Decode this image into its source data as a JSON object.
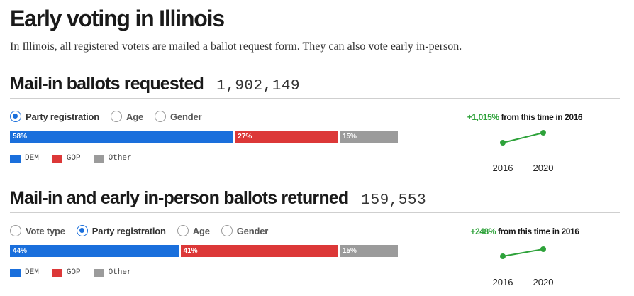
{
  "header": {
    "title": "Early voting in Illinois",
    "subtitle": "In Illinois, all registered voters are mailed a ballot request form. They can also vote early in-person."
  },
  "colors": {
    "dem": "#1a6fdc",
    "gop": "#dc3838",
    "other": "#9b9b9b",
    "trend": "#2ea23a"
  },
  "sections": [
    {
      "title": "Mail-in ballots requested",
      "count": "1,902,149",
      "options": [
        {
          "label": "Party registration",
          "selected": true
        },
        {
          "label": "Age",
          "selected": false
        },
        {
          "label": "Gender",
          "selected": false
        }
      ],
      "bar": [
        {
          "key": "dem",
          "label": "58%",
          "value": 58
        },
        {
          "key": "gop",
          "label": "27%",
          "value": 27
        },
        {
          "key": "other",
          "label": "15%",
          "value": 15
        }
      ],
      "legend": [
        {
          "key": "dem",
          "label": "DEM"
        },
        {
          "key": "gop",
          "label": "GOP"
        },
        {
          "key": "other",
          "label": "Other"
        }
      ],
      "trend": {
        "pct": "+1,015%",
        "text": " from this time in 2016",
        "years": [
          "2016",
          "2020"
        ]
      }
    },
    {
      "title": "Mail-in and early in-person ballots returned",
      "count": "159,553",
      "options": [
        {
          "label": "Vote type",
          "selected": false
        },
        {
          "label": "Party registration",
          "selected": true
        },
        {
          "label": "Age",
          "selected": false
        },
        {
          "label": "Gender",
          "selected": false
        }
      ],
      "bar": [
        {
          "key": "dem",
          "label": "44%",
          "value": 44
        },
        {
          "key": "gop",
          "label": "41%",
          "value": 41
        },
        {
          "key": "other",
          "label": "15%",
          "value": 15
        }
      ],
      "legend": [
        {
          "key": "dem",
          "label": "DEM"
        },
        {
          "key": "gop",
          "label": "GOP"
        },
        {
          "key": "other",
          "label": "Other"
        }
      ],
      "trend": {
        "pct": "+248%",
        "text": " from this time in 2016",
        "years": [
          "2016",
          "2020"
        ]
      }
    }
  ]
}
